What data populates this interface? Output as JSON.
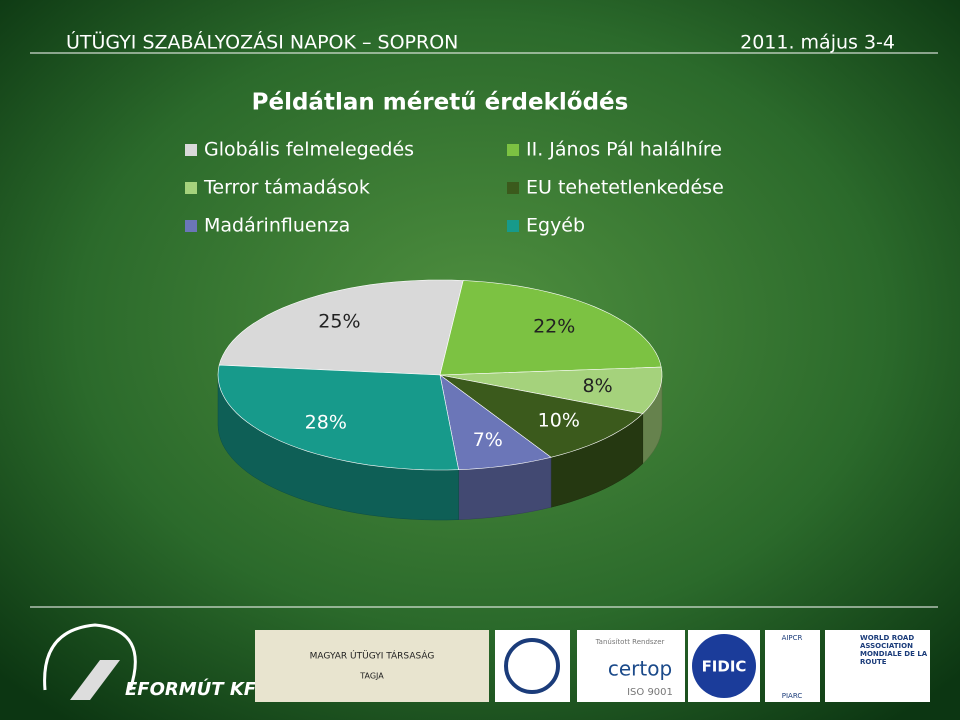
{
  "header": {
    "title": "ÚTÜGYI SZABÁLYOZÁSI NAPOK – SOPRON",
    "date": "2011. május 3-4"
  },
  "chart_data": {
    "type": "pie",
    "title": "Példátlan méretű érdeklődés",
    "categories": [
      "Globális felmelegedés",
      "II. János Pál halálhíre",
      "Terror támadások",
      "EU tehetetlenkedése",
      "Madárinfluenza",
      "Egyéb"
    ],
    "values": [
      25,
      22,
      8,
      10,
      7,
      28
    ],
    "value_labels": [
      "25%",
      "22%",
      "8%",
      "10%",
      "7%",
      "28%"
    ],
    "colors": [
      "#d9d9d9",
      "#7cc242",
      "#a5d27c",
      "#3b5a1c",
      "#6b76b8",
      "#179a8b"
    ]
  },
  "footer": {
    "company": "EFORMÚT KFT.",
    "mut": "MAGYAR ÚTÜGYI TÁRSASÁG",
    "mut_member": "TAGJA",
    "certop_small": "Tanúsított Rendszer",
    "certop": "certop",
    "iso": "ISO 9001",
    "fidic": "FIDIC",
    "aipcr": "AIPCR",
    "piarc": "PIARC",
    "wra": "WORLD ROAD ASSOCIATION MONDIALE DE LA ROUTE"
  }
}
